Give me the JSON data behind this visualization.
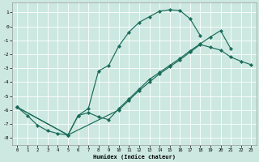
{
  "xlabel": "Humidex (Indice chaleur)",
  "bg_color": "#cce8e0",
  "grid_color": "#ffffff",
  "line_color": "#1a6b5a",
  "xlim": [
    -0.5,
    23.5
  ],
  "ylim": [
    -8.5,
    1.7
  ],
  "yticks": [
    1,
    0,
    -1,
    -2,
    -3,
    -4,
    -5,
    -6,
    -7,
    -8
  ],
  "xticks": [
    0,
    1,
    2,
    3,
    4,
    5,
    6,
    7,
    8,
    9,
    10,
    11,
    12,
    13,
    14,
    15,
    16,
    17,
    18,
    19,
    20,
    21,
    22,
    23
  ],
  "curve1_x": [
    0,
    1,
    2,
    3,
    4,
    5,
    6,
    7,
    8,
    9,
    10,
    11,
    12,
    13,
    14,
    15,
    16,
    17,
    18
  ],
  "curve1_y": [
    -5.8,
    -6.4,
    -7.1,
    -7.5,
    -7.7,
    -7.8,
    -6.4,
    -5.9,
    -3.2,
    -2.8,
    -1.4,
    -0.4,
    0.3,
    0.7,
    1.1,
    1.2,
    1.15,
    0.55,
    -0.65
  ],
  "curve2_x": [
    0,
    5,
    6,
    7,
    8,
    9,
    10,
    11,
    12,
    13,
    14,
    15,
    16,
    17,
    18,
    19,
    20,
    21
  ],
  "curve2_y": [
    -5.8,
    -7.8,
    -6.4,
    -6.2,
    -6.5,
    -6.7,
    -5.9,
    -5.2,
    -4.5,
    -3.8,
    -3.3,
    -2.8,
    -2.3,
    -1.75,
    -1.25,
    -0.75,
    -0.3,
    -1.6
  ],
  "curve3_x": [
    0,
    5,
    10,
    11,
    12,
    13,
    14,
    15,
    16,
    17,
    18,
    19,
    20,
    21,
    22,
    23
  ],
  "curve3_y": [
    -5.8,
    -7.8,
    -6.0,
    -5.3,
    -4.6,
    -4.0,
    -3.4,
    -2.9,
    -2.4,
    -1.85,
    -1.3,
    -1.5,
    -1.7,
    -2.2,
    -2.5,
    -2.75
  ]
}
